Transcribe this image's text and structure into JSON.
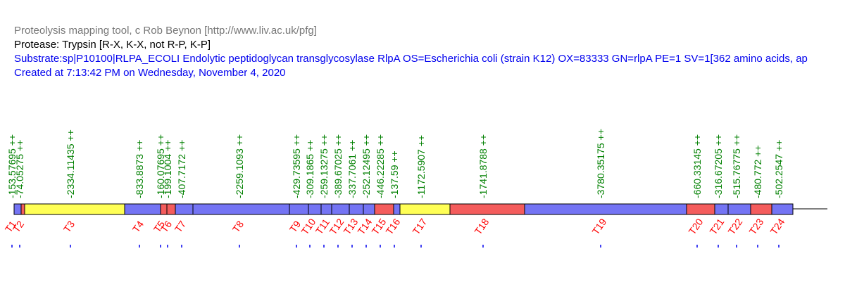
{
  "header": {
    "title": "Proteolysis mapping tool, c Rob Beynon [http://www.liv.ac.uk/pfg]",
    "protease": "Protease: Trypsin [R-X, K-X, not R-P, K-P]",
    "substrate": "Substrate:sp|P10100|RLPA_ECOLI Endolytic peptidoglycan transglycosylase RlpA OS=Escherichia coli (strain K12) OX=83333 GN=rlpA PE=1 SV=1[362 amino acids, ap",
    "created": "Created at 7:13:42 PM on Wednesday, November 4, 2020"
  },
  "fragments": [
    {
      "label": "T1",
      "mass": "-153.57695 ++",
      "color": "#7474f4"
    },
    {
      "label": "T2",
      "mass": "-74.05275 ++",
      "color": "#f45c5c"
    },
    {
      "label": "T3",
      "mass": "-2334.11435 ++",
      "color": "#ffff55"
    },
    {
      "label": "T4",
      "mass": "-833.8873 ++",
      "color": "#7474f4"
    },
    {
      "label": "T5",
      "mass": "-160.07695 ++",
      "color": "#f45c5c"
    },
    {
      "label": "T6",
      "mass": "-199.1004 ++",
      "color": "#f45c5c"
    },
    {
      "label": "T7",
      "mass": "-407.7172 ++",
      "color": "#7474f4"
    },
    {
      "label": "T8",
      "mass": "-2259.1093 ++",
      "color": "#7474f4"
    },
    {
      "label": "T9",
      "mass": "-429.73595 ++",
      "color": "#7474f4"
    },
    {
      "label": "T10",
      "mass": "-309.1865 ++",
      "color": "#7474f4"
    },
    {
      "label": "T11",
      "mass": "-259.13275 ++",
      "color": "#7474f4"
    },
    {
      "label": "T12",
      "mass": "-389.67025 ++",
      "color": "#7474f4"
    },
    {
      "label": "T13",
      "mass": "-337.7061 ++",
      "color": "#7474f4"
    },
    {
      "label": "T14",
      "mass": "-252.12495 ++",
      "color": "#7474f4"
    },
    {
      "label": "T15",
      "mass": "-446.22285 ++",
      "color": "#f45c5c"
    },
    {
      "label": "T16",
      "mass": "-137.59 ++",
      "color": "#7474f4"
    },
    {
      "label": "T17",
      "mass": "-1172.5907 ++",
      "color": "#ffff55"
    },
    {
      "label": "T18",
      "mass": "-1741.8788 ++",
      "color": "#f45c5c"
    },
    {
      "label": "T19",
      "mass": "-3780.35175 ++",
      "color": "#7474f4"
    },
    {
      "label": "T20",
      "mass": "-660.33145 ++",
      "color": "#f45c5c"
    },
    {
      "label": "T21",
      "mass": "-316.67205 ++",
      "color": "#7474f4"
    },
    {
      "label": "T22",
      "mass": "-515.76775 ++",
      "color": "#7474f4"
    },
    {
      "label": "T23",
      "mass": "-480.772 ++",
      "color": "#f45c5c"
    },
    {
      "label": "T24",
      "mass": "-502.2547 ++",
      "color": "#7474f4"
    }
  ]
}
